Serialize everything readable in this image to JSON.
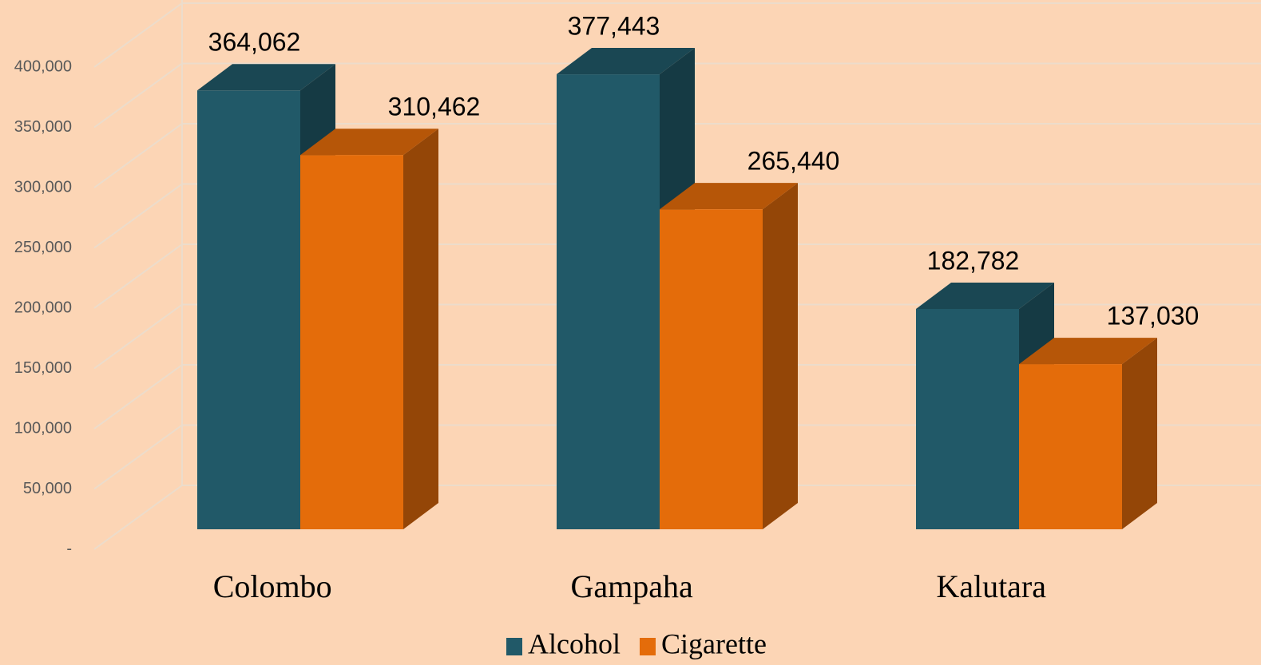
{
  "chart_data": {
    "type": "bar3d",
    "categories": [
      "Colombo",
      "Gampaha",
      "Kalutara"
    ],
    "series": [
      {
        "name": "Alcohol",
        "color": "#215968",
        "values": [
          364062,
          377443,
          182782
        ],
        "value_labels": [
          "364,062",
          "377,443",
          "182,782"
        ]
      },
      {
        "name": "Cigarette",
        "color": "#e46c0a",
        "values": [
          310462,
          265440,
          137030
        ],
        "value_labels": [
          "310,462",
          "265,440",
          "137,030"
        ]
      }
    ],
    "ylim": [
      0,
      400000
    ],
    "yticks": [
      {
        "value": 0,
        "label": "-"
      },
      {
        "value": 50000,
        "label": "50,000"
      },
      {
        "value": 100000,
        "label": "100,000"
      },
      {
        "value": 150000,
        "label": "150,000"
      },
      {
        "value": 200000,
        "label": "200,000"
      },
      {
        "value": 250000,
        "label": "250,000"
      },
      {
        "value": 300000,
        "label": "300,000"
      },
      {
        "value": 350000,
        "label": "350,000"
      },
      {
        "value": 400000,
        "label": "400,000"
      }
    ],
    "grid": true,
    "legend": "bottom"
  }
}
